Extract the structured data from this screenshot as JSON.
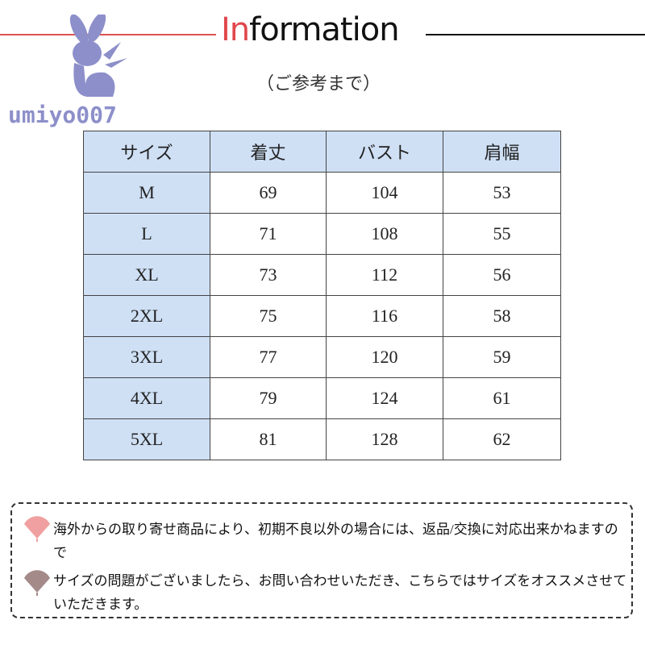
{
  "header": {
    "title_highlight": "In",
    "title_rest": "formation",
    "subtitle": "（ご参考まで）",
    "logo_text": "umiyo007"
  },
  "table": {
    "columns": [
      "サイズ",
      "着丈",
      "バスト",
      "肩幅"
    ],
    "rows": [
      [
        "M",
        "69",
        "104",
        "53"
      ],
      [
        "L",
        "71",
        "108",
        "55"
      ],
      [
        "XL",
        "73",
        "112",
        "56"
      ],
      [
        "2XL",
        "75",
        "116",
        "58"
      ],
      [
        "3XL",
        "77",
        "120",
        "59"
      ],
      [
        "4XL",
        "79",
        "124",
        "61"
      ],
      [
        "5XL",
        "81",
        "128",
        "62"
      ]
    ]
  },
  "notes": [
    {
      "text": "海外からの取り寄せ商品により、初期不良以外の場合には、返品/交換に対応出来かねますので",
      "icon": "fan-icon",
      "color": "#f0a0a0"
    },
    {
      "text": "サイズの問題がございましたら、お問い合わせいただき、こちらではサイズをオススメさせていただきます。",
      "icon": "fan-icon",
      "color": "#a58a8a"
    }
  ],
  "colors": {
    "header_fill": "#cfe0f5",
    "accent": "#e0474c",
    "logo": "#8d8fca"
  }
}
